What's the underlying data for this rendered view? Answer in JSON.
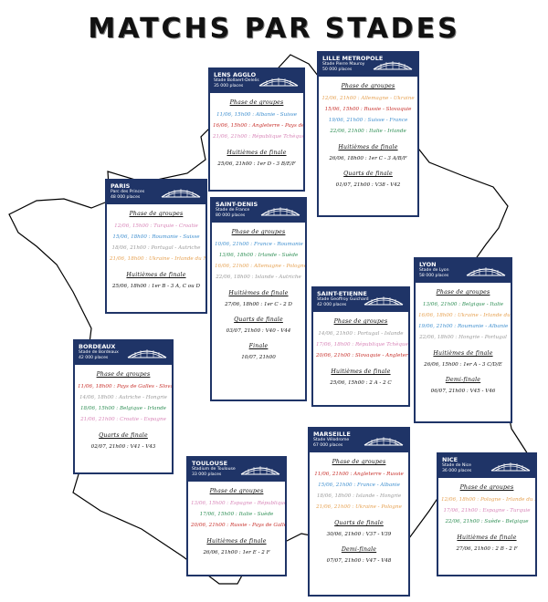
{
  "title": "MATCHS PAR STADES",
  "colors": {
    "navy": "#1f3467",
    "blue": "#3f8fcf",
    "red": "#c8312c",
    "pink": "#d886b8",
    "orange": "#e6a253",
    "green": "#2f8f55",
    "grey": "#9a9a9a"
  },
  "stadiums": [
    {
      "city": "LENS AGGLO",
      "stadium": "Stade Bollaert-Delelis",
      "capacity": "35 000 places",
      "groups_label": "Phase de groupes",
      "matches": [
        {
          "text": "11/06, 15h00 : Albanie - Suisse",
          "color": "blue"
        },
        {
          "text": "16/06, 15h00 : Angleterre - Pays de Galles",
          "color": "red"
        },
        {
          "text": "21/06, 21h00 : République Tchèque - Turquie",
          "color": "pink"
        }
      ],
      "knockouts": [
        {
          "label": "Huitièmes de finale",
          "text": "25/06, 21h00 : 1er D - 3 B/E/F"
        }
      ]
    },
    {
      "city": "LILLE METROPOLE",
      "stadium": "Stade Pierre Mauroy",
      "capacity": "50 000 places",
      "groups_label": "Phase de groupes",
      "matches": [
        {
          "text": "12/06, 21h00 : Allemagne - Ukraine",
          "color": "orange"
        },
        {
          "text": "15/06, 15h00 : Russie - Slovaquie",
          "color": "red"
        },
        {
          "text": "19/06, 21h00 : Suisse - France",
          "color": "blue"
        },
        {
          "text": "22/06, 21h00 : Italie - Irlande",
          "color": "green"
        }
      ],
      "knockouts": [
        {
          "label": "Huitièmes de finale",
          "text": "26/06, 18h00 : 1er C - 3 A/B/F"
        },
        {
          "label": "Quarts de finale",
          "text": "01/07, 21h00 : V38 - V42"
        }
      ]
    },
    {
      "city": "PARIS",
      "stadium": "Parc des Princes",
      "capacity": "48 000 places",
      "groups_label": "Phase de groupes",
      "matches": [
        {
          "text": "12/06, 15h00 : Turquie - Croatie",
          "color": "pink"
        },
        {
          "text": "15/06, 18h00 : Roumanie - Suisse",
          "color": "blue"
        },
        {
          "text": "18/06, 21h00 : Portugal - Autriche",
          "color": "grey"
        },
        {
          "text": "21/06, 18h00 : Ukraine - Irlande du Nord",
          "color": "orange"
        }
      ],
      "knockouts": [
        {
          "label": "Huitièmes de finale",
          "text": "25/06, 18h00 : 1er B - 3 A, C ou D"
        }
      ]
    },
    {
      "city": "SAINT-DENIS",
      "stadium": "Stade de France",
      "capacity": "80 000 places",
      "groups_label": "Phase de groupes",
      "matches": [
        {
          "text": "10/06, 21h00 : France - Roumanie",
          "color": "blue"
        },
        {
          "text": "13/06, 18h00 : Irlande - Suède",
          "color": "green"
        },
        {
          "text": "16/06, 21h00 : Allemagne - Pologne",
          "color": "orange"
        },
        {
          "text": "22/06, 18h00 : Islande - Autriche",
          "color": "grey"
        }
      ],
      "knockouts": [
        {
          "label": "Huitièmes de finale",
          "text": "27/06, 18h00 : 1er C - 2 D"
        },
        {
          "label": "Quarts de finale",
          "text": "03/07, 21h00 : V40 - V44"
        },
        {
          "label": "Finale",
          "text": "10/07, 21h00"
        }
      ]
    },
    {
      "city": "LYON",
      "stadium": "Stade de Lyon",
      "capacity": "58 000 places",
      "groups_label": "Phase de groupes",
      "matches": [
        {
          "text": "13/06, 21h00 : Belgique - Italie",
          "color": "green"
        },
        {
          "text": "16/06, 18h00 : Ukraine - Irlande du Nord",
          "color": "orange"
        },
        {
          "text": "19/06, 21h00 : Roumanie - Albanie",
          "color": "blue"
        },
        {
          "text": "22/06, 18h00 : Hongrie - Portugal",
          "color": "grey"
        }
      ],
      "knockouts": [
        {
          "label": "Huitièmes de finale",
          "text": "26/06, 15h00 : 1er A - 3 C/D/E"
        },
        {
          "label": "Demi-finale",
          "text": "06/07, 21h00 : V45 - V46"
        }
      ]
    },
    {
      "city": "SAINT-ETIENNE",
      "stadium": "Stade Geoffroy Guichard",
      "capacity": "42 000 places",
      "groups_label": "Phase de groupes",
      "matches": [
        {
          "text": "14/06, 21h00 : Portugal - Islande",
          "color": "grey"
        },
        {
          "text": "17/06, 18h00 : République Tchèque - Croatie",
          "color": "pink"
        },
        {
          "text": "20/06, 21h00 : Slovaquie - Angleterre",
          "color": "red"
        }
      ],
      "knockouts": [
        {
          "label": "Huitièmes de finale",
          "text": "25/06, 15h00 : 2 A - 2 C"
        }
      ]
    },
    {
      "city": "BORDEAUX",
      "stadium": "Stade de Bordeaux",
      "capacity": "42 000 places",
      "groups_label": "Phase de groupes",
      "matches": [
        {
          "text": "11/06, 18h00 : Pays de Galles - Slovaquie",
          "color": "red"
        },
        {
          "text": "14/06, 18h00 : Autriche - Hongrie",
          "color": "grey"
        },
        {
          "text": "18/06, 15h00 : Belgique - Irlande",
          "color": "green"
        },
        {
          "text": "21/06, 21h00 : Croatie - Espagne",
          "color": "pink"
        }
      ],
      "knockouts": [
        {
          "label": "Quarts de finale",
          "text": "02/07, 21h00 : V41 - V43"
        }
      ]
    },
    {
      "city": "TOULOUSE",
      "stadium": "Stadium de Toulouse",
      "capacity": "33 000 places",
      "groups_label": "Phase de groupes",
      "matches": [
        {
          "text": "13/06, 15h00 : Espagne - République Tchèque",
          "color": "pink"
        },
        {
          "text": "17/06, 15h00 : Italie - Suède",
          "color": "green"
        },
        {
          "text": "20/06, 21h00 : Russie - Pays de Galles",
          "color": "red"
        }
      ],
      "knockouts": [
        {
          "label": "Huitièmes de finale",
          "text": "26/06, 21h00 : 1er E - 2 F"
        }
      ]
    },
    {
      "city": "MARSEILLE",
      "stadium": "Stade Vélodrome",
      "capacity": "67 000 places",
      "groups_label": "Phase de groupes",
      "matches": [
        {
          "text": "11/06, 21h00 : Angleterre - Russie",
          "color": "red"
        },
        {
          "text": "15/06, 21h00 : France - Albanie",
          "color": "blue"
        },
        {
          "text": "18/06, 18h00 : Islande - Hongrie",
          "color": "grey"
        },
        {
          "text": "21/06, 21h00 : Ukraine - Pologne",
          "color": "orange"
        }
      ],
      "knockouts": [
        {
          "label": "Quarts de finale",
          "text": "30/06, 21h00 : V37 - V39"
        },
        {
          "label": "Demi-finale",
          "text": "07/07, 21h00 : V47 - V48"
        }
      ]
    },
    {
      "city": "NICE",
      "stadium": "Stade de Nice",
      "capacity": "36 000 places",
      "groups_label": "Phase de groupes",
      "matches": [
        {
          "text": "12/06, 18h00 : Pologne - Irlande du Nord",
          "color": "orange"
        },
        {
          "text": "17/06, 21h00 : Espagne - Turquie",
          "color": "pink"
        },
        {
          "text": "22/06, 21h00 : Suède - Belgique",
          "color": "green"
        }
      ],
      "knockouts": [
        {
          "label": "Huitièmes de finale",
          "text": "27/06, 21h00 : 2 B - 2 F"
        }
      ]
    }
  ]
}
